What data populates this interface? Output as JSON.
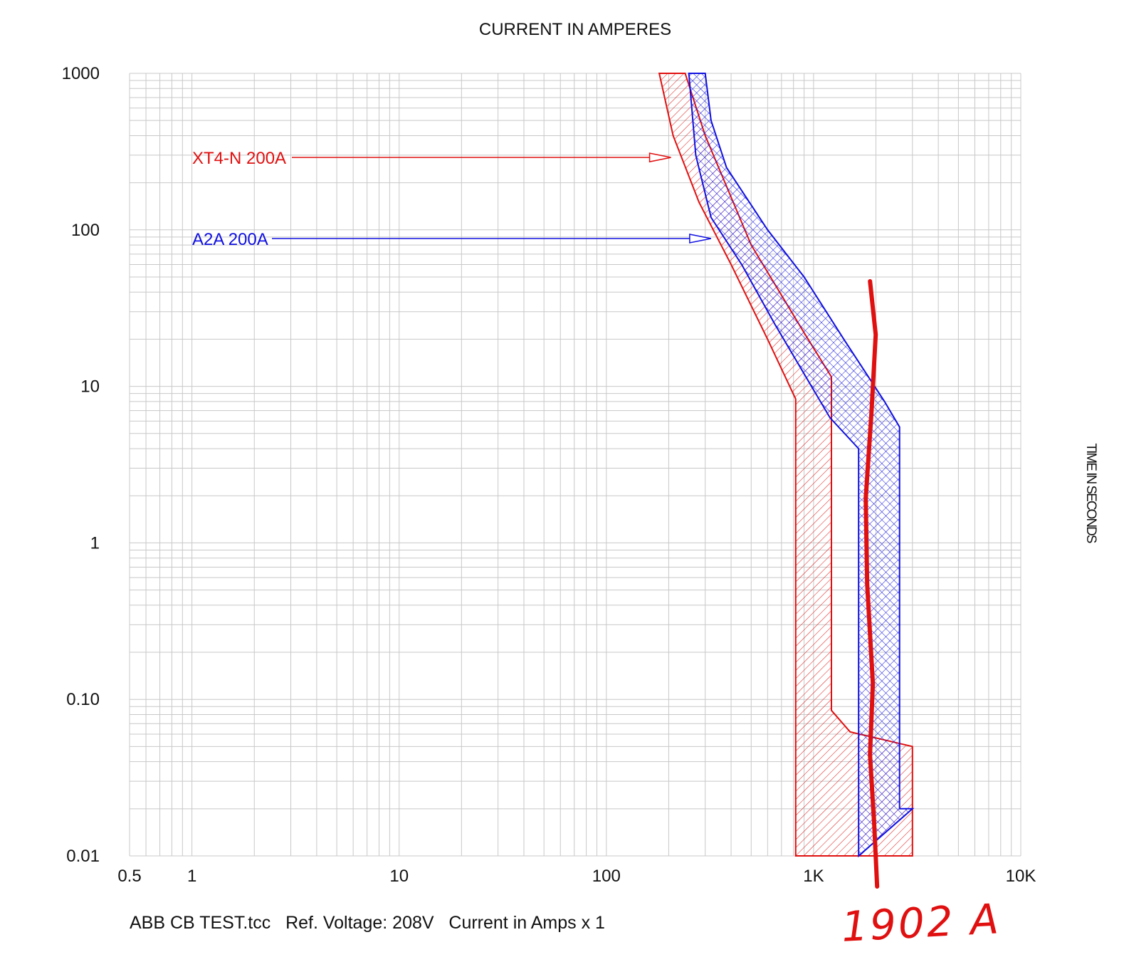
{
  "chart_data": {
    "type": "line",
    "title": "CURRENT IN AMPERES",
    "xlabel": "CURRENT IN AMPERES",
    "ylabel": "TIME IN SECONDS",
    "x_scale": "log",
    "y_scale": "log",
    "xlim": [
      0.5,
      10000
    ],
    "ylim": [
      0.01,
      1000
    ],
    "x_ticks": [
      {
        "value": 0.5,
        "label": "0.5"
      },
      {
        "value": 1,
        "label": "1"
      },
      {
        "value": 10,
        "label": "10"
      },
      {
        "value": 100,
        "label": "100"
      },
      {
        "value": 1000,
        "label": "1K"
      },
      {
        "value": 10000,
        "label": "10K"
      }
    ],
    "y_ticks": [
      {
        "value": 1000,
        "label": "1000"
      },
      {
        "value": 100,
        "label": "100"
      },
      {
        "value": 10,
        "label": "10"
      },
      {
        "value": 1,
        "label": "1"
      },
      {
        "value": 0.1,
        "label": "0.10"
      },
      {
        "value": 0.01,
        "label": "0.01"
      }
    ],
    "grid": true,
    "series": [
      {
        "name": "XT4-N 200A",
        "color": "#e01010",
        "label_y": 290,
        "label_arrow_x": 205,
        "band_min": [
          [
            180,
            1000
          ],
          [
            210,
            400
          ],
          [
            280,
            150
          ],
          [
            400,
            60
          ],
          [
            600,
            20
          ],
          [
            820,
            8.3
          ],
          [
            820,
            0.01
          ]
        ],
        "band_max": [
          [
            240,
            1000
          ],
          [
            300,
            400
          ],
          [
            500,
            80
          ],
          [
            900,
            22
          ],
          [
            1220,
            11.5
          ],
          [
            1220,
            0.085
          ],
          [
            1500,
            0.062
          ],
          [
            3000,
            0.05
          ],
          [
            3000,
            0.01
          ]
        ]
      },
      {
        "name": "A2A 200A",
        "color": "#1010e0",
        "label_y": 88,
        "label_arrow_x": 320,
        "band_min": [
          [
            250,
            1000
          ],
          [
            270,
            300
          ],
          [
            320,
            120
          ],
          [
            450,
            60
          ],
          [
            650,
            25
          ],
          [
            1200,
            6.3
          ],
          [
            1650,
            4
          ],
          [
            1650,
            0.01
          ]
        ],
        "band_max": [
          [
            300,
            1000
          ],
          [
            320,
            500
          ],
          [
            380,
            250
          ],
          [
            600,
            100
          ],
          [
            900,
            50
          ],
          [
            1400,
            20
          ],
          [
            2200,
            8
          ],
          [
            2600,
            5.5
          ],
          [
            2600,
            0.02
          ],
          [
            3000,
            0.02
          ]
        ]
      }
    ],
    "markers": [
      {
        "label": "1902 A",
        "x": 1902,
        "color": "#e01010"
      }
    ],
    "footer": {
      "file": "ABB CB TEST.tcc",
      "voltage": "Ref. Voltage: 208V",
      "current": "Current in Amps x 1"
    },
    "legend_placement": "inline labels with arrows"
  }
}
